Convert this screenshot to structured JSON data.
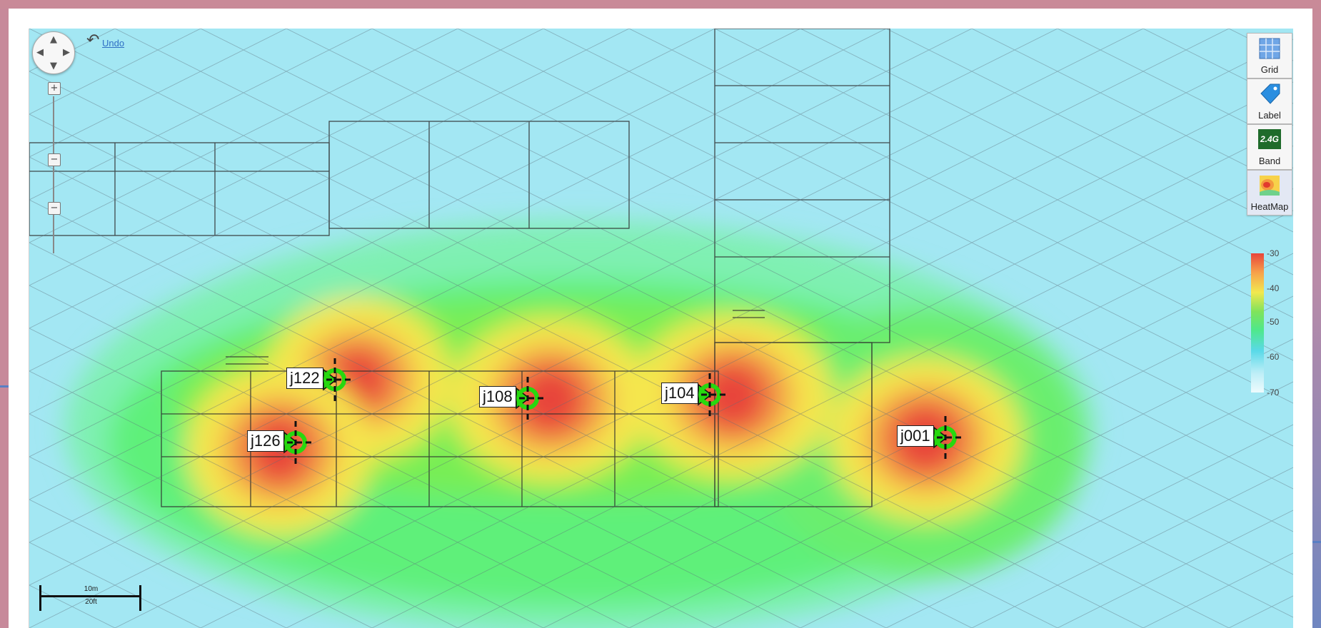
{
  "toolbar": {
    "undo_label": "Undo",
    "grid_label": "Grid",
    "label_label": "Label",
    "band_label": "Band",
    "band_badge": "2.4G",
    "heatmap_label": "HeatMap"
  },
  "legend": {
    "ticks": [
      "-30",
      "-40",
      "-50",
      "-60",
      "-70"
    ],
    "colors": [
      "#e8453a",
      "#f2e84f",
      "#7fe35b",
      "#59d9e8",
      "#eefbfd"
    ]
  },
  "scale_bar": {
    "metric": "10m",
    "imperial": "20ft"
  },
  "access_points": [
    {
      "name": "j122"
    },
    {
      "name": "j108"
    },
    {
      "name": "j104"
    },
    {
      "name": "j126"
    },
    {
      "name": "j001"
    }
  ],
  "colors": {
    "ap_marker": "#27d80f",
    "signal_strong": "#e83a34",
    "signal_weak": "#9fe6f2"
  }
}
